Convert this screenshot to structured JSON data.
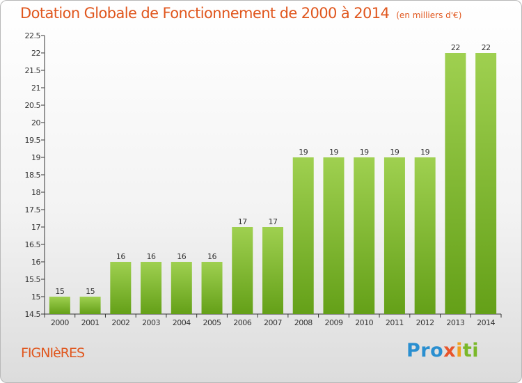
{
  "header": {
    "title": "Dotation Globale de Fonctionnement de 2000 à 2014",
    "subtitle": "(en milliers d'€)"
  },
  "location": "FIGNIèRES",
  "logo": {
    "parts": [
      "Pro",
      "x",
      "i",
      "ti"
    ],
    "text": "Proxiti"
  },
  "colors": {
    "title": "#e0561d",
    "bar_light": "#9fd050",
    "bar_dark": "#64a018",
    "axis": "#333333"
  },
  "chart_data": {
    "type": "bar",
    "categories": [
      "2000",
      "2001",
      "2002",
      "2003",
      "2004",
      "2005",
      "2006",
      "2007",
      "2008",
      "2009",
      "2010",
      "2011",
      "2012",
      "2013",
      "2014"
    ],
    "values": [
      15,
      15,
      16,
      16,
      16,
      16,
      17,
      17,
      19,
      19,
      19,
      19,
      19,
      22,
      22
    ],
    "data_labels": [
      "15",
      "15",
      "16",
      "16",
      "16",
      "16",
      "17",
      "17",
      "19",
      "19",
      "19",
      "19",
      "19",
      "22",
      "22"
    ],
    "ylim": [
      14.5,
      22.5
    ],
    "yticks": [
      14.5,
      15,
      15.5,
      16,
      16.5,
      17,
      17.5,
      18,
      18.5,
      19,
      19.5,
      20,
      20.5,
      21,
      21.5,
      22,
      22.5
    ],
    "ytick_labels": [
      "14.5",
      "15",
      "15.5",
      "16",
      "16.5",
      "17",
      "17.5",
      "18",
      "18.5",
      "19",
      "19.5",
      "20",
      "20.5",
      "21",
      "21.5",
      "22",
      "22.5"
    ],
    "grid": false,
    "legend": "none"
  }
}
